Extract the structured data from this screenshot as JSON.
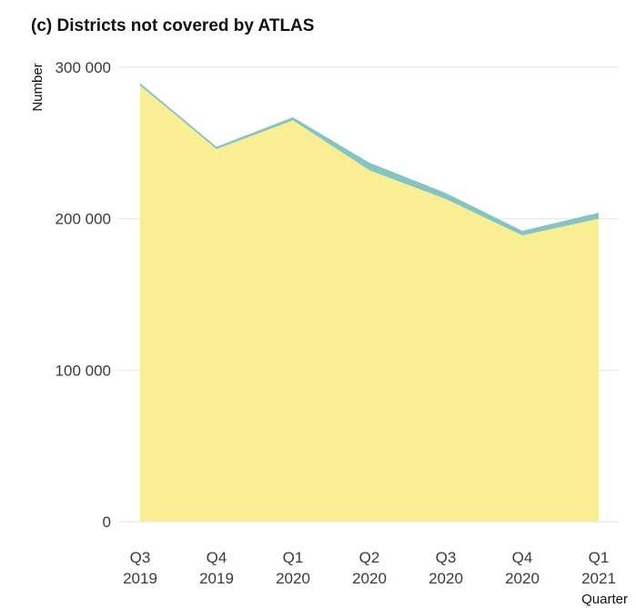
{
  "chart_data": {
    "type": "area",
    "title": "(c) Districts not covered by ATLAS",
    "xlabel": "Quarter",
    "ylabel": "Number",
    "categories": [
      [
        "Q3",
        "2019"
      ],
      [
        "Q4",
        "2019"
      ],
      [
        "Q1",
        "2020"
      ],
      [
        "Q2",
        "2020"
      ],
      [
        "Q3",
        "2020"
      ],
      [
        "Q4",
        "2020"
      ],
      [
        "Q1",
        "2021"
      ]
    ],
    "stacked": true,
    "series": [
      {
        "values": [
          288000,
          246000,
          265000,
          232000,
          213000,
          189000,
          200000
        ],
        "color": "#f9ee94"
      },
      {
        "values": [
          1500,
          1500,
          2000,
          5000,
          4000,
          3000,
          4000
        ],
        "color": "#86c3c3"
      }
    ],
    "ylim": [
      0,
      300000
    ],
    "yticks": [
      0,
      100000,
      200000,
      300000
    ],
    "ytick_labels": [
      "0",
      "100 000",
      "200 000",
      "300 000"
    ],
    "grid": true,
    "legend": "none"
  }
}
